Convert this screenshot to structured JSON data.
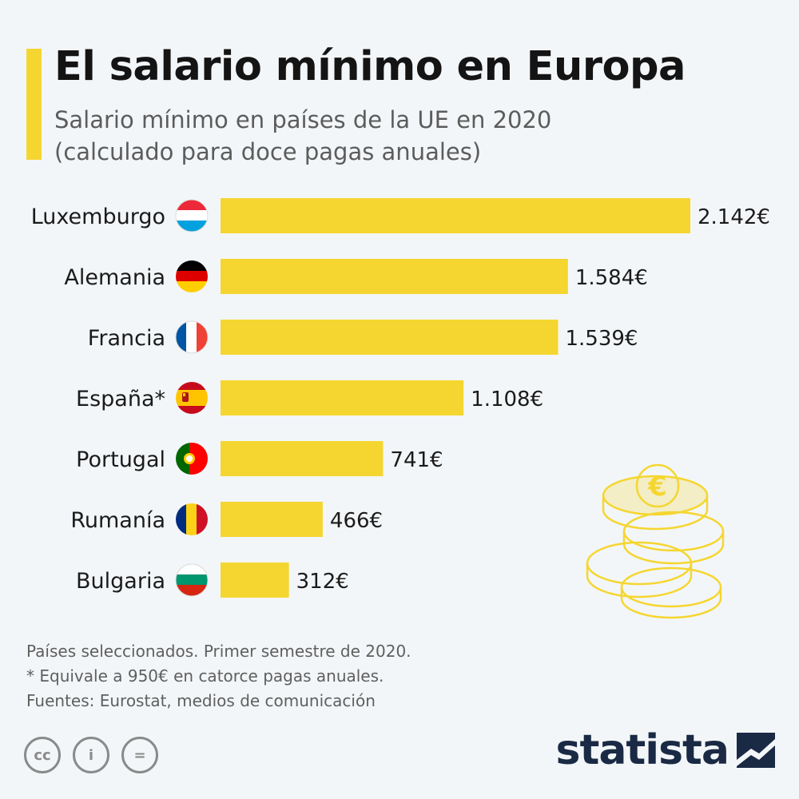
{
  "header": {
    "title": "El salario mínimo en Europa",
    "subtitle_lines": [
      "Salario mínimo en países de la UE en 2020",
      "(calculado para doce pagas anuales)"
    ]
  },
  "chart_data": {
    "type": "bar",
    "orientation": "horizontal",
    "title": "El salario mínimo en Europa",
    "subtitle": "Salario mínimo en países de la UE en 2020 (calculado para doce pagas anuales)",
    "categories": [
      "Luxemburgo",
      "Alemania",
      "Francia",
      "España*",
      "Portugal",
      "Rumanía",
      "Bulgaria"
    ],
    "values": [
      2142,
      1584,
      1539,
      1108,
      741,
      466,
      312
    ],
    "value_labels": [
      "2.142€",
      "1.584€",
      "1.539€",
      "1.108€",
      "741€",
      "466€",
      "312€"
    ],
    "unit": "€",
    "xlim": [
      0,
      2142
    ],
    "bar_color": "#f5d630",
    "grid": false
  },
  "flags": [
    "luxembourg-flag-icon",
    "germany-flag-icon",
    "france-flag-icon",
    "spain-flag-icon",
    "portugal-flag-icon",
    "romania-flag-icon",
    "bulgaria-flag-icon"
  ],
  "footer": {
    "notes": [
      "Países seleccionados. Primer semestre de 2020.",
      "* Equivale a 950€ en catorce pagas anuales.",
      "Fuentes: Eurostat, medios de comunicación"
    ],
    "license_icons": [
      "cc-icon",
      "by-icon",
      "nd-icon"
    ],
    "license_glyphs": [
      "cc",
      "i",
      "="
    ],
    "brand": "statista"
  },
  "decoration": {
    "icon": "euro-coins-stack-icon",
    "symbol": "€"
  },
  "colors": {
    "accent": "#f5d630",
    "brand": "#1a2a45",
    "text": "#1b1b1b",
    "muted": "#5c5c5c"
  }
}
